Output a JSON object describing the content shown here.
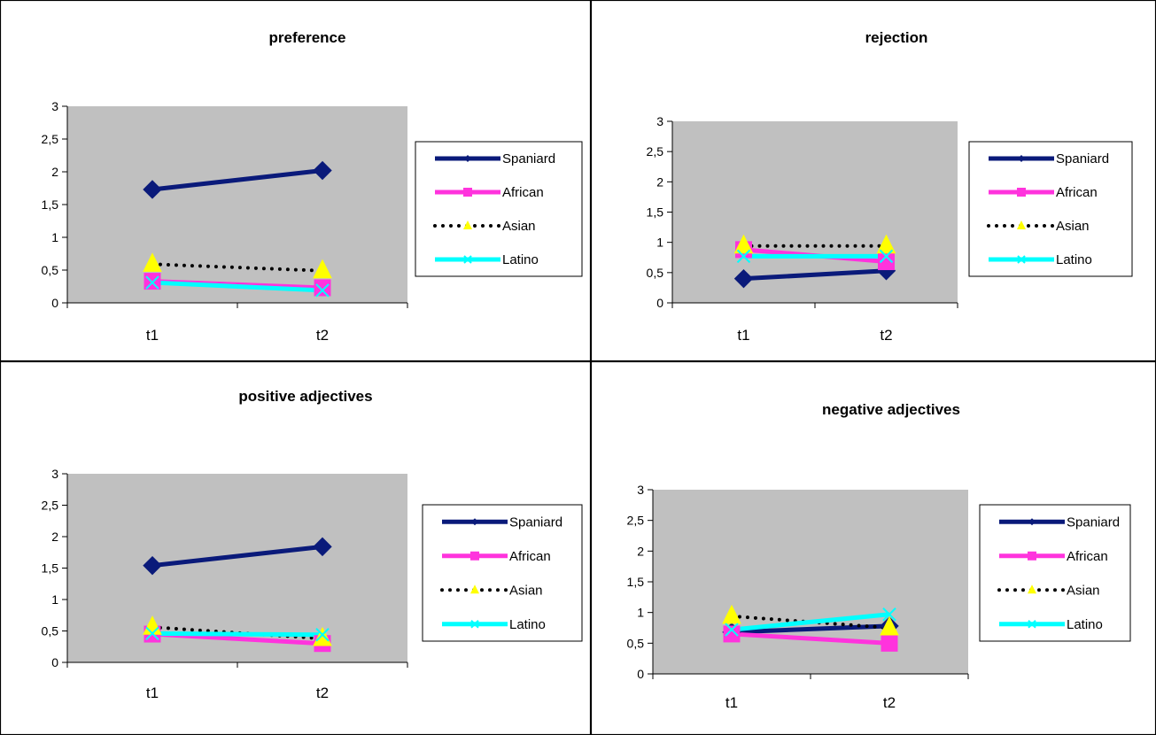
{
  "palette": {
    "Spaniard": "#0a1a7a",
    "African": "#ff33dd",
    "Asian": "#000000",
    "Latino": "#00ffff",
    "asian_marker": "#ffff00",
    "plot_bg": "#c0c0c0"
  },
  "chart_data": [
    {
      "type": "line",
      "title": "preference",
      "categories": [
        "t1",
        "t2"
      ],
      "ylim": [
        0,
        3
      ],
      "yticks": [
        "0",
        "0,5",
        "1",
        "1,5",
        "2",
        "2,5",
        "3"
      ],
      "legend": "right",
      "series": [
        {
          "name": "Spaniard",
          "values": [
            1.73,
            2.02
          ]
        },
        {
          "name": "African",
          "values": [
            0.33,
            0.23
          ]
        },
        {
          "name": "Asian",
          "values": [
            0.59,
            0.49
          ]
        },
        {
          "name": "Latino",
          "values": [
            0.31,
            0.19
          ]
        }
      ]
    },
    {
      "type": "line",
      "title": "rejection",
      "categories": [
        "t1",
        "t2"
      ],
      "ylim": [
        0,
        3
      ],
      "yticks": [
        "0",
        "0,5",
        "1",
        "1,5",
        "2",
        "2,5",
        "3"
      ],
      "legend": "right",
      "series": [
        {
          "name": "Spaniard",
          "values": [
            0.4,
            0.53
          ]
        },
        {
          "name": "African",
          "values": [
            0.88,
            0.68
          ]
        },
        {
          "name": "Asian",
          "values": [
            0.94,
            0.94
          ]
        },
        {
          "name": "Latino",
          "values": [
            0.77,
            0.77
          ]
        }
      ]
    },
    {
      "type": "line",
      "title": "positive adjectives",
      "categories": [
        "t1",
        "t2"
      ],
      "ylim": [
        0,
        3
      ],
      "yticks": [
        "0",
        "0,5",
        "1",
        "1,5",
        "2",
        "2,5",
        "3"
      ],
      "legend": "right",
      "series": [
        {
          "name": "Spaniard",
          "values": [
            1.54,
            1.84
          ]
        },
        {
          "name": "African",
          "values": [
            0.45,
            0.3
          ]
        },
        {
          "name": "Asian",
          "values": [
            0.56,
            0.38
          ]
        },
        {
          "name": "Latino",
          "values": [
            0.46,
            0.44
          ]
        }
      ]
    },
    {
      "type": "line",
      "title": "negative adjectives",
      "categories": [
        "t1",
        "t2"
      ],
      "ylim": [
        0,
        3
      ],
      "yticks": [
        "0",
        "0,5",
        "1",
        "1,5",
        "2",
        "2,5",
        "3"
      ],
      "legend": "right",
      "series": [
        {
          "name": "Spaniard",
          "values": [
            0.68,
            0.78
          ]
        },
        {
          "name": "African",
          "values": [
            0.65,
            0.5
          ]
        },
        {
          "name": "Asian",
          "values": [
            0.94,
            0.75
          ]
        },
        {
          "name": "Latino",
          "values": [
            0.72,
            0.97
          ]
        }
      ]
    }
  ]
}
